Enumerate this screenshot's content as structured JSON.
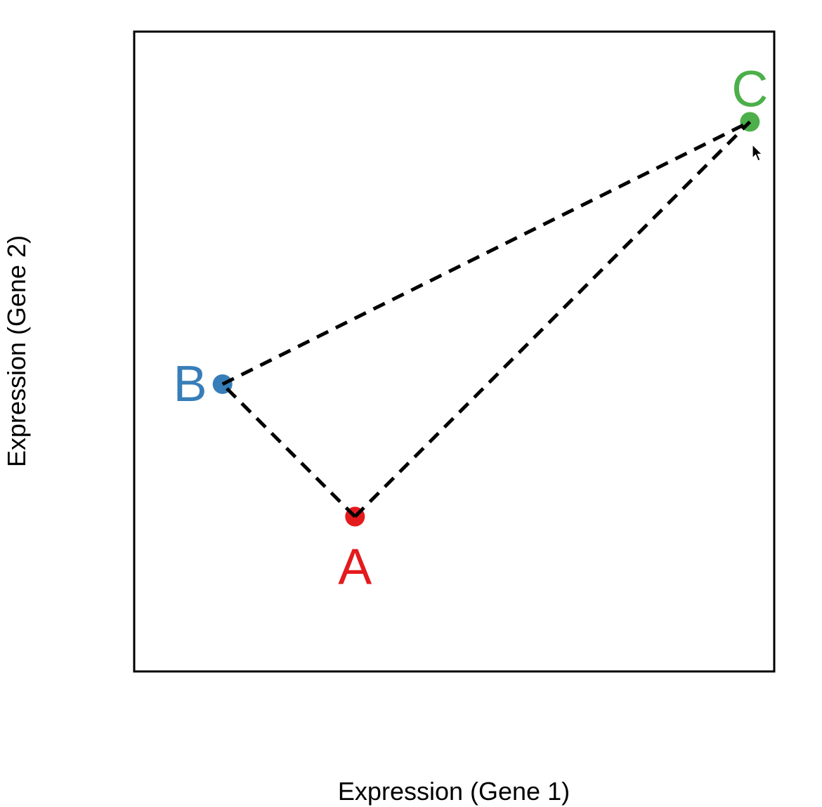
{
  "chart_data": {
    "type": "scatter",
    "title": "",
    "xlabel": "Expression (Gene 1)",
    "ylabel": "Expression (Gene 2)",
    "xlim": [
      0,
      100
    ],
    "ylim": [
      0,
      100
    ],
    "grid": false,
    "axes_ticks": false,
    "points": [
      {
        "label": "A",
        "x": 34.5,
        "y": 24.2,
        "color": "#E41A1C",
        "label_position": "below"
      },
      {
        "label": "B",
        "x": 13.8,
        "y": 44.9,
        "color": "#377EB8",
        "label_position": "left"
      },
      {
        "label": "C",
        "x": 96.2,
        "y": 85.9,
        "color": "#4DAF4A",
        "label_position": "above"
      }
    ],
    "segments": [
      {
        "from": "A",
        "to": "B",
        "style": "dashed",
        "color": "#000000"
      },
      {
        "from": "A",
        "to": "C",
        "style": "dashed",
        "color": "#000000"
      },
      {
        "from": "B",
        "to": "C",
        "style": "dashed",
        "color": "#000000"
      }
    ]
  },
  "cursor": {
    "icon": "mouse-pointer-icon"
  }
}
